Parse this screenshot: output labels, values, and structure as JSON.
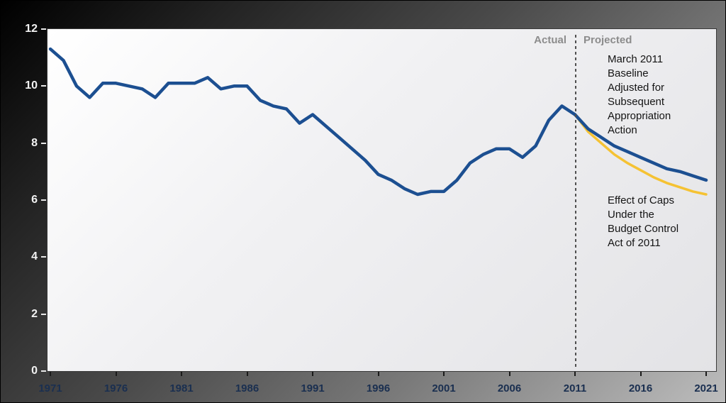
{
  "colors": {
    "blue": "#1c4f91",
    "gold": "#f5c233",
    "x_label": "#1a2f50",
    "x_tick": "#1a1a1a",
    "y_label": "#f2f2f2",
    "y_tick": "#e8e8e8",
    "divider_labels": "#8c8c8c",
    "divider_line": "#4f4f4f"
  },
  "chart_data": {
    "type": "line",
    "title": "",
    "xlabel": "",
    "ylabel": "",
    "xlim": [
      1971,
      2021
    ],
    "ylim": [
      0,
      12
    ],
    "x_ticks": [
      1971,
      1976,
      1981,
      1986,
      1991,
      1996,
      2001,
      2006,
      2011,
      2016,
      2021
    ],
    "y_ticks": [
      0,
      2,
      4,
      6,
      8,
      10,
      12
    ],
    "grid": false,
    "legend_position": "none",
    "divider_x": 2011,
    "series": [
      {
        "name": "Actual",
        "color": "#1c4f91",
        "x": [
          1971,
          1972,
          1973,
          1974,
          1975,
          1976,
          1977,
          1978,
          1979,
          1980,
          1981,
          1982,
          1983,
          1984,
          1985,
          1986,
          1987,
          1988,
          1989,
          1990,
          1991,
          1992,
          1993,
          1994,
          1995,
          1996,
          1997,
          1998,
          1999,
          2000,
          2001,
          2002,
          2003,
          2004,
          2005,
          2006,
          2007,
          2008,
          2009,
          2010,
          2011
        ],
        "values": [
          11.3,
          10.9,
          10.0,
          9.6,
          10.1,
          10.1,
          10.0,
          9.9,
          9.6,
          10.1,
          10.1,
          10.1,
          10.3,
          9.9,
          10.0,
          10.0,
          9.5,
          9.3,
          9.2,
          8.7,
          9.0,
          8.6,
          8.2,
          7.8,
          7.4,
          6.9,
          6.7,
          6.4,
          6.2,
          6.3,
          6.3,
          6.7,
          7.3,
          7.6,
          7.8,
          7.8,
          7.5,
          7.9,
          8.8,
          9.3,
          9.0
        ]
      },
      {
        "name": "March 2011 Baseline Adjusted for Subsequent Appropriation Action",
        "color": "#1c4f91",
        "x": [
          2011,
          2012,
          2013,
          2014,
          2015,
          2016,
          2017,
          2018,
          2019,
          2020,
          2021
        ],
        "values": [
          9.0,
          8.5,
          8.2,
          7.9,
          7.7,
          7.5,
          7.3,
          7.1,
          7.0,
          6.85,
          6.7
        ]
      },
      {
        "name": "Effect of Caps Under the Budget Control Act of 2011",
        "color": "#f5c233",
        "x": [
          2011,
          2012,
          2013,
          2014,
          2015,
          2016,
          2017,
          2018,
          2019,
          2020,
          2021
        ],
        "values": [
          9.0,
          8.4,
          8.0,
          7.6,
          7.3,
          7.05,
          6.8,
          6.6,
          6.45,
          6.3,
          6.2
        ]
      }
    ],
    "annotations": {
      "actual": "Actual",
      "projected": "Projected",
      "baseline": "March 2011\nBaseline\nAdjusted for\nSubsequent\nAppropriation\nAction",
      "caps": "Effect of Caps\nUnder the\nBudget Control\nAct of 2011"
    }
  }
}
